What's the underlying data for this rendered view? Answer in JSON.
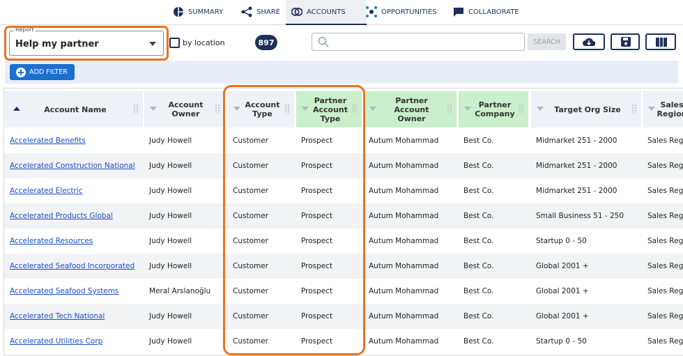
{
  "nav": {
    "tabs": [
      "SUMMARY",
      "SHARE",
      "ACCOUNTS",
      "OPPORTUNITIES",
      "COLLABORATE"
    ]
  },
  "controls": {
    "report_label": "Report",
    "report_value": "Help my partner",
    "by_location": "by location",
    "count": "897",
    "search_button": "SEARCH",
    "add_filter": "ADD FILTER"
  },
  "table": {
    "columns": [
      "Account Name",
      "Account Owner",
      "Account Type",
      "Partner Account Type",
      "Partner Account Owner",
      "Partner Company",
      "Target Org Size",
      "Sales Region"
    ],
    "rows": [
      [
        "Accelerated Benefits",
        "Judy Howell",
        "Customer",
        "Prospect",
        "Autum Mohammad",
        "Best Co.",
        "Midmarket 251 - 2000",
        "Sales Region"
      ],
      [
        "Accelerated Construction National",
        "Judy Howell",
        "Customer",
        "Prospect",
        "Autum Mohammad",
        "Best Co.",
        "Midmarket 251 - 2000",
        "Sales Region"
      ],
      [
        "Accelerated Electric",
        "Judy Howell",
        "Customer",
        "Prospect",
        "Autum Mohammad",
        "Best Co.",
        "Midmarket 251 - 2000",
        "Sales Region"
      ],
      [
        "Accelerated Products Global",
        "Judy Howell",
        "Customer",
        "Prospect",
        "Autum Mohammad",
        "Best Co.",
        "Small Business 51 - 250",
        "Sales Region"
      ],
      [
        "Accelerated Resources",
        "Judy Howell",
        "Customer",
        "Prospect",
        "Autum Mohammad",
        "Best Co.",
        "Startup 0 - 50",
        "Sales Region"
      ],
      [
        "Accelerated Seafood Incorporated",
        "Judy Howell",
        "Customer",
        "Prospect",
        "Autum Mohammad",
        "Best Co.",
        "Global 2001 +",
        "Sales Region"
      ],
      [
        "Accelerated Seafood Systems",
        "Meral Arslanoğlu",
        "Customer",
        "Prospect",
        "Autum Mohammad",
        "Best Co.",
        "Global 2001 +",
        "Sales Region"
      ],
      [
        "Accelerated Tech National",
        "Judy Howell",
        "Customer",
        "Prospect",
        "Autum Mohammad",
        "Best Co.",
        "Global 2001 +",
        "Sales Region"
      ],
      [
        "Accelerated Utilities Corp",
        "Judy Howell",
        "Customer",
        "Prospect",
        "Autum Mohammad",
        "Best Co.",
        "Startup 0 - 50",
        "Sales Region"
      ]
    ]
  }
}
